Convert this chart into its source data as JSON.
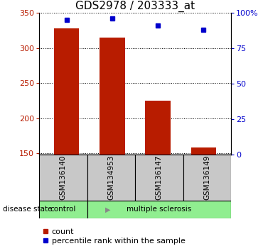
{
  "title": "GDS2978 / 203333_at",
  "samples": [
    "GSM136140",
    "GSM134953",
    "GSM136147",
    "GSM136149"
  ],
  "bar_values": [
    328,
    315,
    225,
    158
  ],
  "bar_baseline": 148,
  "percentile_values": [
    95,
    96,
    91,
    88
  ],
  "ylim_left": [
    148,
    350
  ],
  "ylim_right": [
    0,
    100
  ],
  "yticks_left": [
    150,
    200,
    250,
    300,
    350
  ],
  "yticks_right": [
    0,
    25,
    50,
    75,
    100
  ],
  "yticklabels_right": [
    "0",
    "25",
    "50",
    "75",
    "100%"
  ],
  "bar_color": "#b81c00",
  "dot_color": "#0000cc",
  "bar_width": 0.55,
  "sample_box_color": "#c8c8c8",
  "control_label": "control",
  "control_color": "#90ee90",
  "ms_label": "multiple sclerosis",
  "ms_color": "#90ee90",
  "disease_state_label": "disease state",
  "legend_count_label": "count",
  "legend_pct_label": "percentile rank within the sample",
  "title_fontsize": 11,
  "tick_fontsize": 8,
  "legend_fontsize": 8,
  "n_samples": 4
}
